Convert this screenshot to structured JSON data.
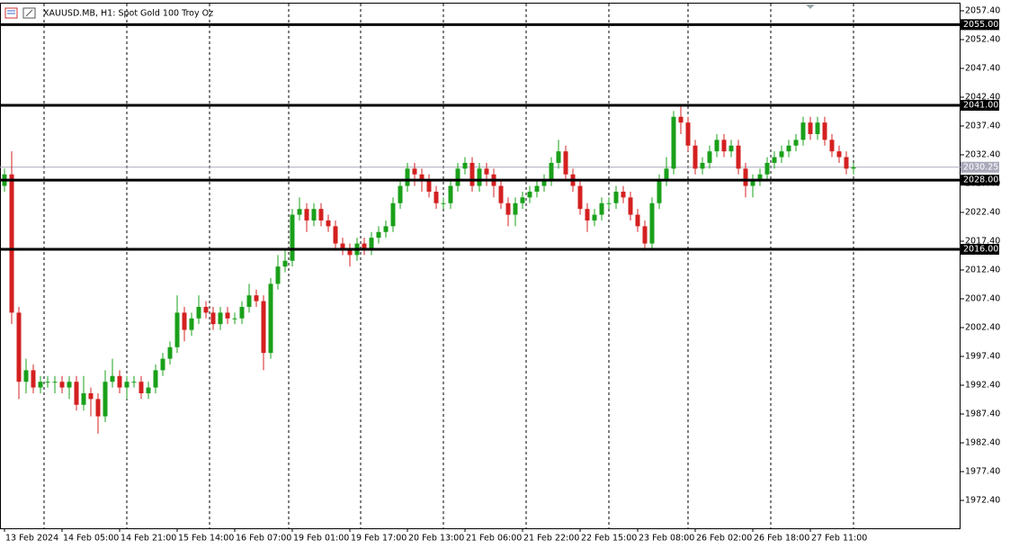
{
  "chart_data": {
    "type": "candlestick",
    "title": "XAUUSD.MB, H1:  Spot Gold 100 Troy Oz",
    "up_color": "#1aa01a",
    "down_color": "#d42020",
    "open": [
      2027,
      2029,
      2005,
      1993,
      1995,
      1992,
      1993,
      1993,
      1993,
      1992,
      1993,
      1989,
      1991,
      1990,
      1987,
      1993,
      1994,
      1992,
      1993,
      1993,
      1991,
      1992,
      1995,
      1997,
      1999,
      2005,
      2002,
      2004,
      2006,
      2005,
      2003,
      2005,
      2004,
      2004,
      2006,
      2008,
      2007,
      1998,
      2010,
      2013,
      2014,
      2022,
      2023,
      2021,
      2023,
      2021,
      2020,
      2017,
      2016,
      2015,
      2017,
      2016,
      2018,
      2019,
      2020,
      2024,
      2027,
      2030,
      2029,
      2028,
      2026,
      2024,
      2024,
      2027,
      2030,
      2031,
      2027,
      2030,
      2029,
      2027,
      2024,
      2022,
      2024,
      2025,
      2026,
      2027,
      2028,
      2031,
      2033,
      2029,
      2027,
      2023,
      2021,
      2022,
      2024,
      2024,
      2026,
      2025,
      2022,
      2020,
      2017,
      2024,
      2028,
      2030,
      2039,
      2038,
      2034,
      2030,
      2031,
      2033,
      2035,
      2033,
      2034,
      2030,
      2027,
      2028,
      2029,
      2031,
      2032,
      2033,
      2034,
      2035,
      2038,
      2036,
      2038,
      2035,
      2033,
      2032,
      2030
    ],
    "high": [
      2030,
      2033,
      2006,
      1997,
      1996,
      1994,
      1994,
      1994,
      1994,
      1994,
      1994,
      1994,
      1992,
      1991,
      1995,
      1997,
      1995,
      1994,
      1994,
      1994,
      1993,
      1996,
      1998,
      2000,
      2008,
      2006,
      2005,
      2008,
      2007,
      2006,
      2006,
      2006,
      2005,
      2007,
      2010,
      2009,
      2008,
      2011,
      2015,
      2016,
      2023,
      2025,
      2024,
      2024,
      2024,
      2022,
      2021,
      2018,
      2017,
      2018,
      2018,
      2019,
      2020,
      2021,
      2025,
      2028,
      2031,
      2031,
      2030,
      2029,
      2027,
      2025,
      2028,
      2031,
      2032,
      2032,
      2031,
      2031,
      2030,
      2028,
      2025,
      2025,
      2026,
      2027,
      2028,
      2029,
      2032,
      2035,
      2034,
      2030,
      2028,
      2024,
      2023,
      2025,
      2025,
      2027,
      2027,
      2026,
      2023,
      2021,
      2025,
      2029,
      2032,
      2040,
      2041,
      2039,
      2035,
      2032,
      2034,
      2036,
      2036,
      2035,
      2035,
      2031,
      2029,
      2030,
      2032,
      2033,
      2034,
      2035,
      2036,
      2039,
      2039,
      2039,
      2039,
      2036,
      2034,
      2033,
      2031
    ],
    "low": [
      2026,
      2003,
      1990,
      1991,
      1991,
      1991,
      1992,
      1991,
      1991,
      1990,
      1988,
      1988,
      1987,
      1984,
      1986,
      1992,
      1991,
      1990,
      1992,
      1990,
      1990,
      1991,
      1994,
      1996,
      1998,
      2000,
      2001,
      2003,
      2004,
      2002,
      2002,
      2003,
      2003,
      2003,
      2005,
      2006,
      1995,
      1997,
      2009,
      2012,
      2013,
      2021,
      2019,
      2020,
      2020,
      2019,
      2016,
      2015,
      2013,
      2014,
      2015,
      2015,
      2017,
      2018,
      2019,
      2023,
      2026,
      2027,
      2026,
      2025,
      2023,
      2023,
      2023,
      2026,
      2029,
      2026,
      2026,
      2027,
      2025,
      2023,
      2020,
      2020,
      2023,
      2024,
      2025,
      2026,
      2027,
      2030,
      2028,
      2026,
      2022,
      2019,
      2020,
      2021,
      2023,
      2023,
      2024,
      2021,
      2019,
      2016,
      2016,
      2023,
      2027,
      2029,
      2036,
      2033,
      2029,
      2029,
      2030,
      2032,
      2032,
      2032,
      2029,
      2025,
      2025,
      2027,
      2028,
      2030,
      2031,
      2032,
      2033,
      2034,
      2035,
      2035,
      2034,
      2032,
      2031,
      2029,
      2029
    ],
    "close": [
      2029,
      2005,
      1993,
      1995,
      1992,
      1993,
      1993,
      1993,
      1992,
      1993,
      1989,
      1991,
      1990,
      1987,
      1993,
      1994,
      1992,
      1993,
      1993,
      1991,
      1992,
      1995,
      1997,
      1999,
      2005,
      2002,
      2004,
      2006,
      2005,
      2003,
      2005,
      2004,
      2004,
      2006,
      2008,
      2007,
      1998,
      2010,
      2013,
      2014,
      2022,
      2023,
      2021,
      2023,
      2021,
      2020,
      2017,
      2016,
      2015,
      2017,
      2016,
      2018,
      2019,
      2020,
      2024,
      2027,
      2030,
      2029,
      2028,
      2026,
      2024,
      2024,
      2027,
      2030,
      2031,
      2027,
      2030,
      2029,
      2027,
      2024,
      2022,
      2024,
      2025,
      2026,
      2027,
      2028,
      2031,
      2033,
      2029,
      2027,
      2023,
      2021,
      2022,
      2024,
      2024,
      2026,
      2025,
      2022,
      2020,
      2017,
      2024,
      2028,
      2030,
      2039,
      2038,
      2034,
      2030,
      2031,
      2033,
      2035,
      2033,
      2034,
      2030,
      2027,
      2028,
      2029,
      2031,
      2032,
      2033,
      2034,
      2035,
      2038,
      2036,
      2038,
      2035,
      2033,
      2032,
      2030,
      2030.25
    ],
    "xlim": [
      -0.625,
      132.875
    ],
    "xticks": [
      {
        "value": 0,
        "label": "13 Feb 2024"
      },
      {
        "value": 8,
        "label": "14 Feb 05:00"
      },
      {
        "value": 16,
        "label": "14 Feb 21:00"
      },
      {
        "value": 24,
        "label": "15 Feb 14:00"
      },
      {
        "value": 32,
        "label": "16 Feb 07:00"
      },
      {
        "value": 40,
        "label": "19 Feb 01:00"
      },
      {
        "value": 48,
        "label": "19 Feb 17:00"
      },
      {
        "value": 56,
        "label": "20 Feb 13:00"
      },
      {
        "value": 64,
        "label": "21 Feb 06:00"
      },
      {
        "value": 72,
        "label": "21 Feb 22:00"
      },
      {
        "value": 80,
        "label": "22 Feb 15:00"
      },
      {
        "value": 88,
        "label": "23 Feb 08:00"
      },
      {
        "value": 96,
        "label": "26 Feb 02:00"
      },
      {
        "value": 104,
        "label": "26 Feb 18:00"
      },
      {
        "value": 112,
        "label": "27 Feb 11:00"
      }
    ],
    "ylim": [
      1967.56,
      2058.65
    ],
    "yticks": [
      {
        "value": 1972.4,
        "label": "1972.40"
      },
      {
        "value": 1977.4,
        "label": "1977.40"
      },
      {
        "value": 1982.4,
        "label": "1982.40"
      },
      {
        "value": 1987.4,
        "label": "1987.40"
      },
      {
        "value": 1992.4,
        "label": "1992.40"
      },
      {
        "value": 1997.4,
        "label": "1997.40"
      },
      {
        "value": 2002.4,
        "label": "2002.40"
      },
      {
        "value": 2007.4,
        "label": "2007.40"
      },
      {
        "value": 2012.4,
        "label": "2012.40"
      },
      {
        "value": 2017.4,
        "label": "2017.40"
      },
      {
        "value": 2022.4,
        "label": "2022.40"
      },
      {
        "value": 2027.4,
        "label": "2027.40"
      },
      {
        "value": 2032.4,
        "label": "2032.40"
      },
      {
        "value": 2037.4,
        "label": "2037.40"
      },
      {
        "value": 2042.4,
        "label": "2042.40"
      },
      {
        "value": 2047.4,
        "label": "2047.40"
      },
      {
        "value": 2052.4,
        "label": "2052.40"
      },
      {
        "value": 2057.4,
        "label": "2057.40"
      }
    ],
    "levels": [
      {
        "value": 2055,
        "label": "2055.00"
      },
      {
        "value": 2041,
        "label": "2041.00"
      },
      {
        "value": 2028,
        "label": "2028.00"
      },
      {
        "value": 2016,
        "label": "2016.00"
      }
    ],
    "last_price": {
      "value": 2030.25,
      "label": "2030.25"
    }
  }
}
